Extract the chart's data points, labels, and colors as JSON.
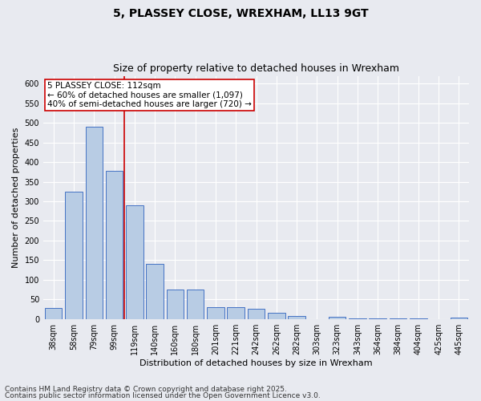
{
  "title_line1": "5, PLASSEY CLOSE, WREXHAM, LL13 9GT",
  "title_line2": "Size of property relative to detached houses in Wrexham",
  "xlabel": "Distribution of detached houses by size in Wrexham",
  "ylabel": "Number of detached properties",
  "categories": [
    "38sqm",
    "58sqm",
    "79sqm",
    "99sqm",
    "119sqm",
    "140sqm",
    "160sqm",
    "180sqm",
    "201sqm",
    "221sqm",
    "242sqm",
    "262sqm",
    "282sqm",
    "303sqm",
    "323sqm",
    "343sqm",
    "364sqm",
    "384sqm",
    "404sqm",
    "425sqm",
    "445sqm"
  ],
  "values": [
    28,
    325,
    490,
    378,
    290,
    140,
    75,
    75,
    30,
    30,
    25,
    15,
    8,
    0,
    5,
    2,
    2,
    2,
    2,
    0,
    3
  ],
  "bar_color": "#b8cce4",
  "bar_edge_color": "#4472c4",
  "red_line_x": 3.5,
  "annotation_text_line1": "5 PLASSEY CLOSE: 112sqm",
  "annotation_text_line2": "← 60% of detached houses are smaller (1,097)",
  "annotation_text_line3": "40% of semi-detached houses are larger (720) →",
  "annotation_box_color": "#ffffff",
  "annotation_box_edge_color": "#cc0000",
  "ylim": [
    0,
    620
  ],
  "yticks": [
    0,
    50,
    100,
    150,
    200,
    250,
    300,
    350,
    400,
    450,
    500,
    550,
    600
  ],
  "background_color": "#e8eaf0",
  "grid_color": "#ffffff",
  "footer_line1": "Contains HM Land Registry data © Crown copyright and database right 2025.",
  "footer_line2": "Contains public sector information licensed under the Open Government Licence v3.0.",
  "title_fontsize": 10,
  "subtitle_fontsize": 9,
  "axis_label_fontsize": 8,
  "tick_fontsize": 7,
  "annotation_fontsize": 7.5,
  "footer_fontsize": 6.5
}
